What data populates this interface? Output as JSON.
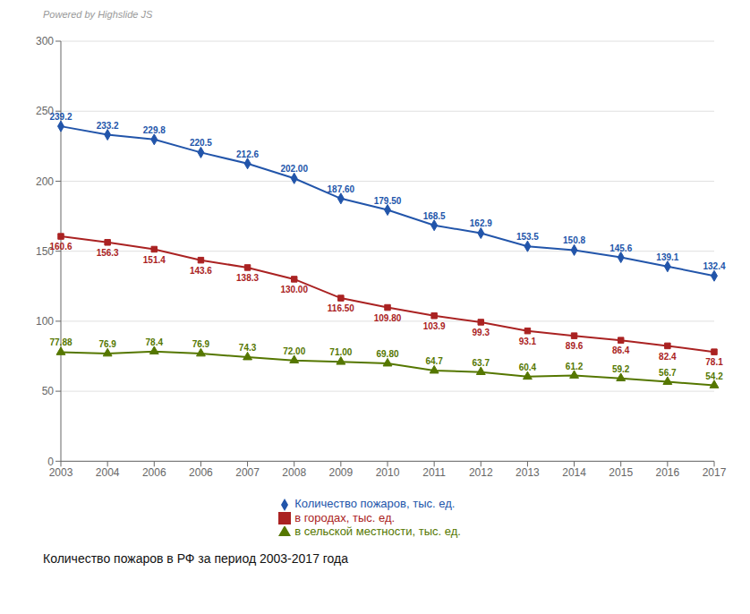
{
  "chart_data": {
    "type": "line",
    "title": "Количество пожаров в РФ за период 2003-2017 года",
    "annotations": [
      "Powered by Highslide JS"
    ],
    "categories": [
      "2003",
      "2004",
      "2006",
      "2006",
      "2007",
      "2008",
      "2009",
      "2010",
      "2011",
      "2012",
      "2013",
      "2014",
      "2015",
      "2016",
      "2017"
    ],
    "series": [
      {
        "name": "Количество пожаров, тыс. ед.",
        "color": "#2255AA",
        "marker": "diamond",
        "values": [
          239.2,
          233.2,
          229.8,
          220.5,
          212.6,
          202.0,
          187.6,
          179.5,
          168.5,
          162.9,
          153.5,
          150.8,
          145.6,
          139.1,
          132.4
        ],
        "value_labels": [
          "239.2",
          "233.2",
          "229.8",
          "220.5",
          "212.6",
          "202.00",
          "187.60",
          "179.50",
          "168.5",
          "162.9",
          "153.5",
          "150.8",
          "145.6",
          "139.1",
          "132.4"
        ]
      },
      {
        "name": "в городах, тыс. ед.",
        "color": "#AA2222",
        "marker": "square",
        "values": [
          160.6,
          156.3,
          151.4,
          143.6,
          138.3,
          130.0,
          116.5,
          109.8,
          103.9,
          99.3,
          93.1,
          89.6,
          86.4,
          82.4,
          78.1
        ],
        "value_labels": [
          "160.6",
          "156.3",
          "151.4",
          "143.6",
          "138.3",
          "130.00",
          "116.50",
          "109.80",
          "103.9",
          "99.3",
          "93.1",
          "89.6",
          "86.4",
          "82.4",
          "78.1"
        ]
      },
      {
        "name": "в сельской местности, тыс. ед.",
        "color": "#557700",
        "marker": "triangle",
        "values": [
          77.88,
          76.9,
          78.4,
          76.9,
          74.3,
          72.0,
          71.0,
          69.8,
          64.7,
          63.7,
          60.4,
          61.2,
          59.2,
          56.7,
          54.2
        ],
        "value_labels": [
          "77.88",
          "76.9",
          "78.4",
          "76.9",
          "74.3",
          "72.00",
          "71.00",
          "69.80",
          "64.7",
          "63.7",
          "60.4",
          "61.2",
          "59.2",
          "56.7",
          "54.2"
        ]
      }
    ],
    "ylim": [
      0,
      300
    ],
    "yticks": [
      0,
      50,
      100,
      150,
      200,
      250,
      300
    ],
    "grid": true,
    "legend": "bottom",
    "data_labels": true
  }
}
